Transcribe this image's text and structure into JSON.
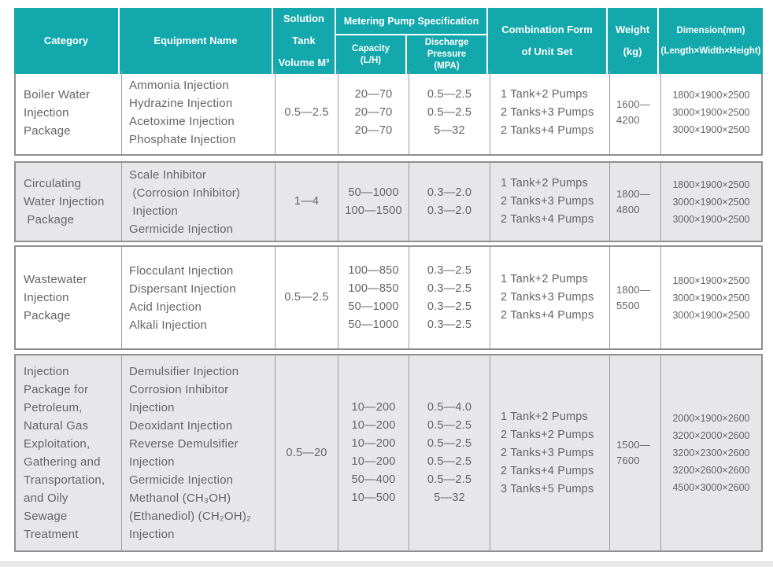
{
  "colors": {
    "header_bg": "#12a8ac",
    "row_alt": "#e7e7e9",
    "border": "#8d8e90",
    "text": "#636468"
  },
  "header": {
    "category": "Category",
    "equipment": "Equipment Name",
    "tank_line1": "Solution Tank",
    "tank_line2": "Volume M³",
    "pump_spec": "Metering Pump Specification",
    "capacity_line1": "Capacity",
    "capacity_line2": "(L/H)",
    "discharge_line1": "Discharge Pressure",
    "discharge_line2": "(MPA)",
    "combination_line1": "Combination Form",
    "combination_line2": "of Unit Set",
    "weight_line1": "Weight",
    "weight_line2": "(kg)",
    "dimension_line1": "Dimension(mm)",
    "dimension_line2": "(Length×Width×Height)"
  },
  "rows": [
    {
      "category": [
        "Boiler Water",
        "Injection",
        "Package"
      ],
      "equipment": [
        "Ammonia Injection",
        "Hydrazine Injection",
        "Acetoxime Injection",
        "Phosphate Injection"
      ],
      "tank": [
        "0.5—2.5"
      ],
      "capacity": [
        "20—70",
        "20—70",
        "20—70"
      ],
      "discharge": [
        "0.5—2.5",
        "0.5—2.5",
        "5—32"
      ],
      "combination": [
        "1 Tank+2 Pumps",
        "2 Tanks+3 Pumps",
        "2 Tanks+4 Pumps"
      ],
      "weight": [
        "1600—",
        "4200"
      ],
      "dimension": [
        "1800×1900×2500",
        "3000×1900×2500",
        "3000×1900×2500"
      ]
    },
    {
      "category": [
        "Circulating",
        "Water Injection",
        " Package"
      ],
      "equipment": [
        "Scale Inhibitor",
        " (Corrosion Inhibitor)",
        " Injection",
        "Germicide Injection"
      ],
      "tank": [
        "1—4"
      ],
      "capacity": [
        "50—1000",
        "100—1500"
      ],
      "discharge": [
        "0.3—2.0",
        "0.3—2.0"
      ],
      "combination": [
        "1 Tank+2 Pumps",
        "2 Tanks+3 Pumps",
        "2 Tanks+4 Pumps"
      ],
      "weight": [
        "1800—",
        "4800"
      ],
      "dimension": [
        "1800×1900×2500",
        "3000×1900×2500",
        "3000×1900×2500"
      ]
    },
    {
      "category": [
        "Wastewater",
        "Injection",
        "Package"
      ],
      "equipment": [
        "Flocculant Injection",
        "Dispersant Injection",
        "Acid Injection",
        "Alkali Injection"
      ],
      "tank": [
        "0.5—2.5"
      ],
      "capacity": [
        "100—850",
        "100—850",
        "50—1000",
        "50—1000"
      ],
      "discharge": [
        "0.3—2.5",
        "0.3—2.5",
        "0.3—2.5",
        "0.3—2.5"
      ],
      "combination": [
        "1 Tank+2 Pumps",
        "2 Tanks+3 Pumps",
        "2 Tanks+4 Pumps"
      ],
      "weight": [
        "1800—",
        "5500"
      ],
      "dimension": [
        "1800×1900×2500",
        "3000×1900×2500",
        "3000×1900×2500"
      ]
    },
    {
      "category": [
        "Injection",
        "Package for",
        "Petroleum,",
        "Natural Gas",
        "Exploitation,",
        "Gathering and",
        "Transportation,",
        "and Oily",
        "Sewage",
        "Treatment"
      ],
      "equipment": [
        "Demulsifier Injection",
        "Corrosion Inhibitor",
        "Injection",
        "Deoxidant Injection",
        "Reverse Demulsifier",
        "Injection",
        "Germicide Injection",
        "Methanol (CH₃OH)",
        "(Ethanediol) (CH₂OH)₂",
        "Injection"
      ],
      "tank": [
        "0.5—20"
      ],
      "capacity": [
        "10—200",
        "10—200",
        "10—200",
        "10—200",
        "50—400",
        "10—500"
      ],
      "discharge": [
        "0.5—4.0",
        "0.5—2.5",
        "0.5—2.5",
        "0.5—2.5",
        "0.5—2.5",
        "5—32"
      ],
      "combination": [
        "1 Tank+2 Pumps",
        "2 Tanks+2 Pumps",
        "2 Tanks+3 Pumps",
        "2 Tanks+4 Pumps",
        "3 Tanks+5 Pumps"
      ],
      "weight": [
        "1500—",
        "7600"
      ],
      "dimension": [
        "2000×1900×2600",
        "3200×2000×2600",
        "3200×2300×2600",
        "3200×2600×2600",
        "4500×3000×2600"
      ]
    }
  ]
}
